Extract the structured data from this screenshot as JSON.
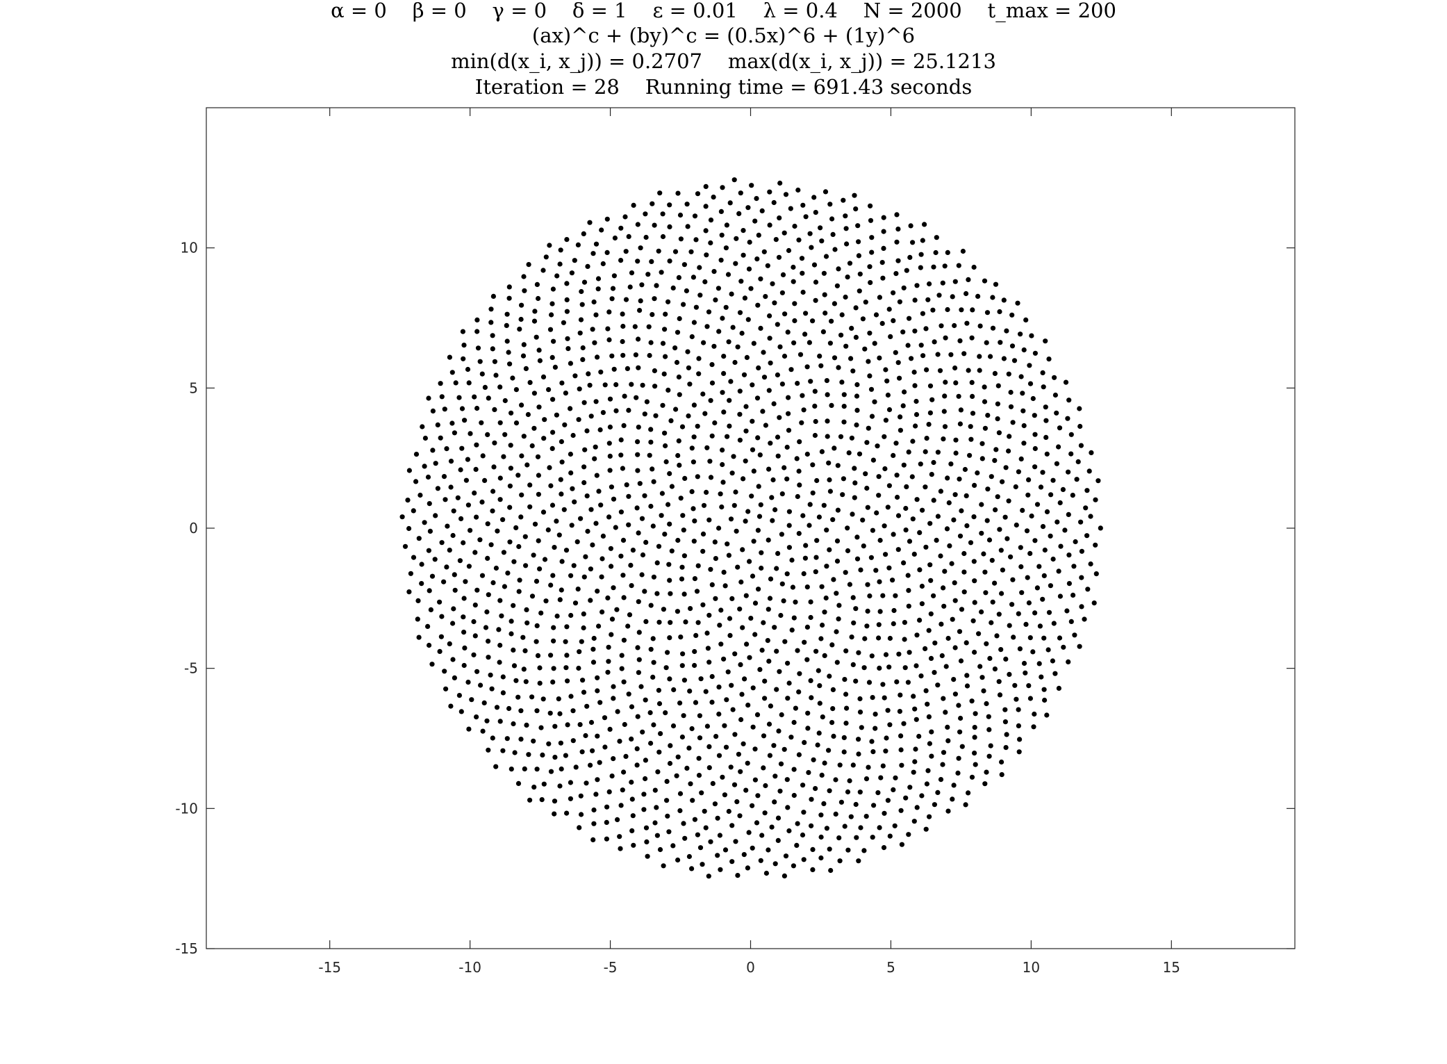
{
  "chart_data": {
    "type": "scatter",
    "title_lines": [
      "α = 0    β = 0    γ = 0    δ = 1    ε = 0.01    λ = 0.4    N = 2000    t_max = 200",
      "(ax)^c + (by)^c = (0.5x)^6 + (1y)^6",
      "min(d(x_i, x_j)) = 0.2707    max(d(x_i, x_j)) = 25.1213",
      "Iteration = 28    Running time = 691.43 seconds"
    ],
    "xlabel": "",
    "ylabel": "",
    "xlim": [
      -19.4,
      19.4
    ],
    "ylim": [
      -15,
      15
    ],
    "xticks": [
      -15,
      -10,
      -5,
      0,
      5,
      10,
      15
    ],
    "xtick_labels": [
      "-15",
      "-10",
      "-5",
      "0",
      "5",
      "10",
      "15"
    ],
    "yticks": [
      -15,
      -10,
      -5,
      0,
      5,
      10
    ],
    "ytick_labels": [
      "-15",
      "-10",
      "-5",
      "0",
      "5",
      "10"
    ],
    "grid": false,
    "marker_color": "#000000",
    "series": [
      {
        "point_count": 2000,
        "region": "disk",
        "center": [
          0.05,
          -0.05
        ],
        "radius": 12.5,
        "min_pairwise_distance": 0.2707,
        "max_pairwise_distance": 25.1213
      }
    ]
  }
}
